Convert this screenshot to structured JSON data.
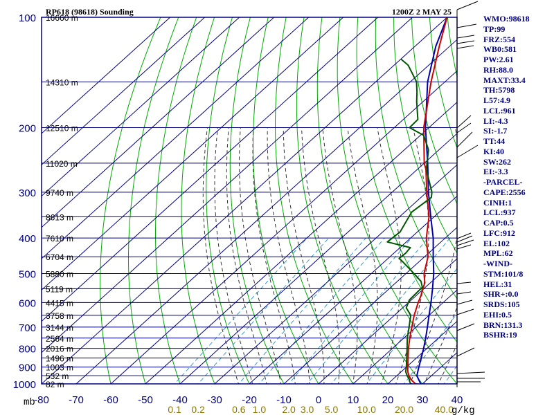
{
  "header": {
    "station": "RP618 (98618) Sounding",
    "time": "1200Z  2 MAY 25"
  },
  "colors": {
    "frame": "#000080",
    "isobar": "#000080",
    "isotherm": "#000080",
    "dry_adiabat": "#00aa00",
    "moist_adiabat": "#333333",
    "mixing_ratio": "#3399cc",
    "temperature": "#cc0000",
    "dewpoint": "#005500",
    "parcel": "#0000aa",
    "axis_text": "#000080",
    "mixing_label": "#8b7500",
    "height_label": "#000000",
    "index_text": "#000080",
    "wind_barb": "#000000"
  },
  "indices": [
    "WMO:98618",
    "TP:99",
    "FRZ:554",
    "WB0:581",
    "PW:2.61",
    "RH:88.0",
    "MAXT:33.4",
    "TH:5798",
    "L57:4.9",
    "LCL:961",
    "LI:-4.3",
    "SI:-1.7",
    "TT:44",
    "KI:40",
    "SW:262",
    "EI:-3.3",
    "-PARCEL-",
    "CAPE:2556",
    "CINH:1",
    "LCL:937",
    "CAP:0.5",
    "LFC:912",
    "EL:102",
    "MPL:62",
    "-WIND-",
    "STM:101/8",
    "HEL:31",
    "SHR+:0.0",
    "SRDS:105",
    "EHI:0.5",
    "BRN:131.3",
    "BSHR:19"
  ],
  "chart_data": {
    "type": "skew-t",
    "x_unit": "mb",
    "pressure_range": [
      1000,
      100
    ],
    "temperature_range": [
      -80,
      40
    ],
    "pressure_ticks": [
      "100",
      "200",
      "300",
      "400",
      "500",
      "600",
      "700",
      "800",
      "900",
      "1000"
    ],
    "temperature_ticks": [
      "-80",
      "-70",
      "-60",
      "-50",
      "-40",
      "-30",
      "-20",
      "-10",
      "0",
      "10",
      "20",
      "30",
      "40"
    ],
    "mixing_ratio_labels": [
      "0.1",
      "0.2",
      "0.6",
      "1.0",
      "2.0",
      "3.0",
      "5.0",
      "10.0",
      "20.0",
      "40.0"
    ],
    "mixing_ratio_unit": "g/kg",
    "height_labels": [
      {
        "p": 100,
        "text": "16660 m"
      },
      {
        "p": 150,
        "text": "14310 m"
      },
      {
        "p": 200,
        "text": "12510 m"
      },
      {
        "p": 250,
        "text": "11020 m"
      },
      {
        "p": 300,
        "text": "9740 m"
      },
      {
        "p": 350,
        "text": "8613 m"
      },
      {
        "p": 400,
        "text": "7610 m"
      },
      {
        "p": 450,
        "text": "6704 m"
      },
      {
        "p": 500,
        "text": "5880 m"
      },
      {
        "p": 550,
        "text": "5119 m"
      },
      {
        "p": 600,
        "text": "4415 m"
      },
      {
        "p": 650,
        "text": "3758 m"
      },
      {
        "p": 700,
        "text": "3144 m"
      },
      {
        "p": 750,
        "text": "2564 m"
      },
      {
        "p": 800,
        "text": "2016 m"
      },
      {
        "p": 850,
        "text": "1496 m"
      },
      {
        "p": 900,
        "text": "1003 m"
      },
      {
        "p": 950,
        "text": "532 m"
      },
      {
        "p": 1000,
        "text": "82 m"
      }
    ],
    "temperature_profile": [
      [
        1008,
        31.0
      ],
      [
        1000,
        28.0
      ],
      [
        975,
        25.5
      ],
      [
        950,
        23.5
      ],
      [
        925,
        21.8
      ],
      [
        900,
        20.4
      ],
      [
        850,
        17.6
      ],
      [
        800,
        14.6
      ],
      [
        750,
        11.7
      ],
      [
        700,
        8.8
      ],
      [
        650,
        5.7
      ],
      [
        600,
        2.8
      ],
      [
        575,
        1.4
      ],
      [
        550,
        -0.3
      ],
      [
        530,
        -1.6
      ],
      [
        500,
        -4.8
      ],
      [
        450,
        -9.0
      ],
      [
        420,
        -12.8
      ],
      [
        400,
        -15.5
      ],
      [
        350,
        -21.5
      ],
      [
        300,
        -30.0
      ],
      [
        260,
        -37.5
      ],
      [
        250,
        -40.0
      ],
      [
        200,
        -51.5
      ],
      [
        150,
        -64.0
      ],
      [
        120,
        -73.0
      ],
      [
        100,
        -80.0
      ]
    ],
    "dewpoint_profile": [
      [
        1008,
        29.2
      ],
      [
        1000,
        26.6
      ],
      [
        980,
        25.2
      ],
      [
        975,
        25.0
      ],
      [
        950,
        23.0
      ],
      [
        925,
        21.2
      ],
      [
        900,
        20.0
      ],
      [
        850,
        17.2
      ],
      [
        800,
        14.2
      ],
      [
        750,
        11.0
      ],
      [
        700,
        8.0
      ],
      [
        650,
        4.7
      ],
      [
        620,
        1.0
      ],
      [
        590,
        -0.6
      ],
      [
        560,
        -0.8
      ],
      [
        545,
        -0.9
      ],
      [
        525,
        -3.2
      ],
      [
        490,
        -9.6
      ],
      [
        460,
        -15.6
      ],
      [
        455,
        -16.8
      ],
      [
        440,
        -16.6
      ],
      [
        425,
        -17.0
      ],
      [
        410,
        -25.5
      ],
      [
        385,
        -25.0
      ],
      [
        340,
        -28.0
      ],
      [
        310,
        -27.0
      ],
      [
        300,
        -28.5
      ],
      [
        260,
        -37.4
      ],
      [
        230,
        -43.0
      ],
      [
        210,
        -49.0
      ],
      [
        200,
        -55.6
      ],
      [
        190,
        -55.8
      ],
      [
        170,
        -61.8
      ],
      [
        160,
        -64.8
      ],
      [
        150,
        -68.2
      ],
      [
        135,
        -76.0
      ],
      [
        130,
        -80.0
      ]
    ],
    "parcel_profile": [
      [
        1008,
        31.0
      ],
      [
        1000,
        29.5
      ],
      [
        950,
        25.8
      ],
      [
        900,
        23.6
      ],
      [
        850,
        21.4
      ],
      [
        800,
        19.0
      ],
      [
        750,
        16.3
      ],
      [
        700,
        13.3
      ],
      [
        650,
        10.0
      ],
      [
        600,
        6.5
      ],
      [
        550,
        2.5
      ],
      [
        500,
        -2.0
      ],
      [
        450,
        -7.5
      ],
      [
        400,
        -13.5
      ],
      [
        350,
        -21.0
      ],
      [
        300,
        -29.5
      ],
      [
        250,
        -39.0
      ],
      [
        200,
        -51.0
      ],
      [
        150,
        -65.0
      ],
      [
        120,
        -74.0
      ],
      [
        100,
        -80.0
      ]
    ]
  }
}
